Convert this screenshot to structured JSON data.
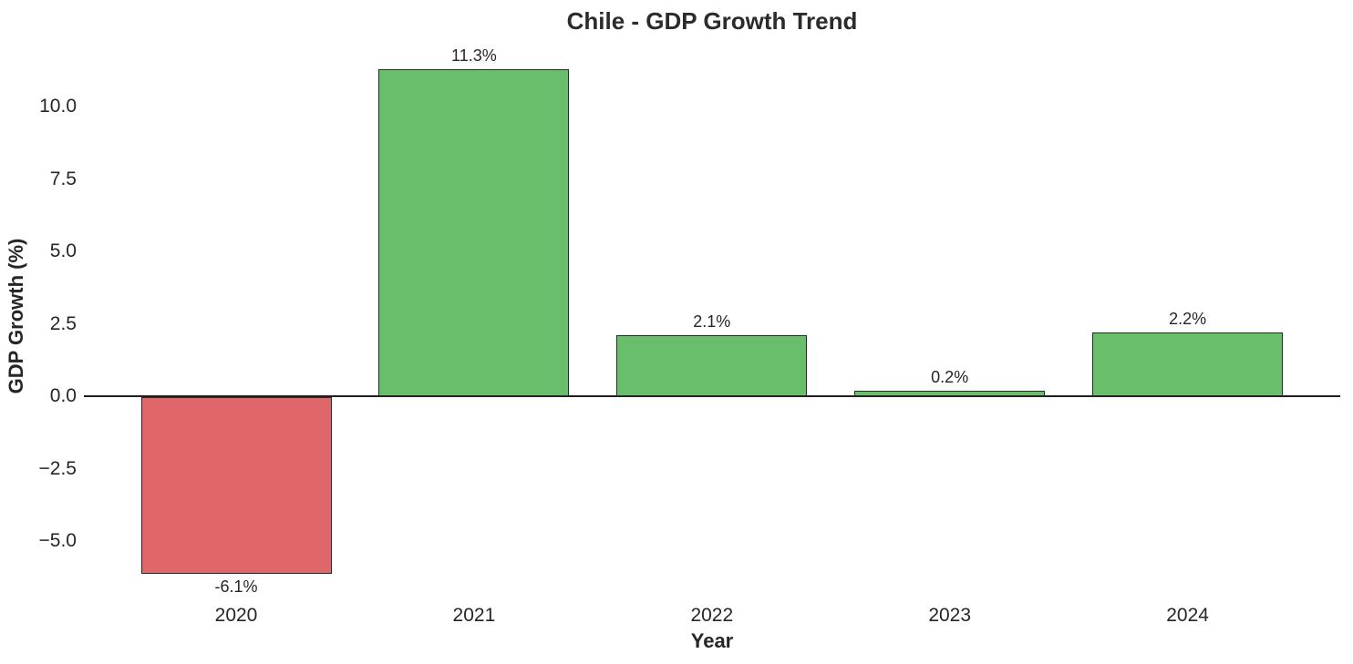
{
  "chart_data": {
    "type": "bar",
    "title": "Chile - GDP Growth Trend",
    "xlabel": "Year",
    "ylabel": "GDP Growth (%)",
    "categories": [
      "2020",
      "2021",
      "2022",
      "2023",
      "2024"
    ],
    "values": [
      -6.1,
      11.3,
      2.1,
      0.2,
      2.2
    ],
    "bar_labels": [
      "-6.1%",
      "11.3%",
      "2.1%",
      "0.2%",
      "2.2%"
    ],
    "yticks": [
      10.0,
      7.5,
      5.0,
      2.5,
      0.0,
      -2.5,
      -5.0
    ],
    "ytick_labels": [
      "10.0",
      "7.5",
      "5.0",
      "2.5",
      "0.0",
      "−2.5",
      "−5.0"
    ],
    "ylim": [
      -7.3,
      11.9
    ],
    "grid": false,
    "legend": null,
    "colors": {
      "positive_bar": "#69be6c",
      "negative_bar": "#e06769",
      "bar_edge": "#2a2a2a",
      "zero_line": "#1f1f1f",
      "text": "#262626"
    }
  }
}
